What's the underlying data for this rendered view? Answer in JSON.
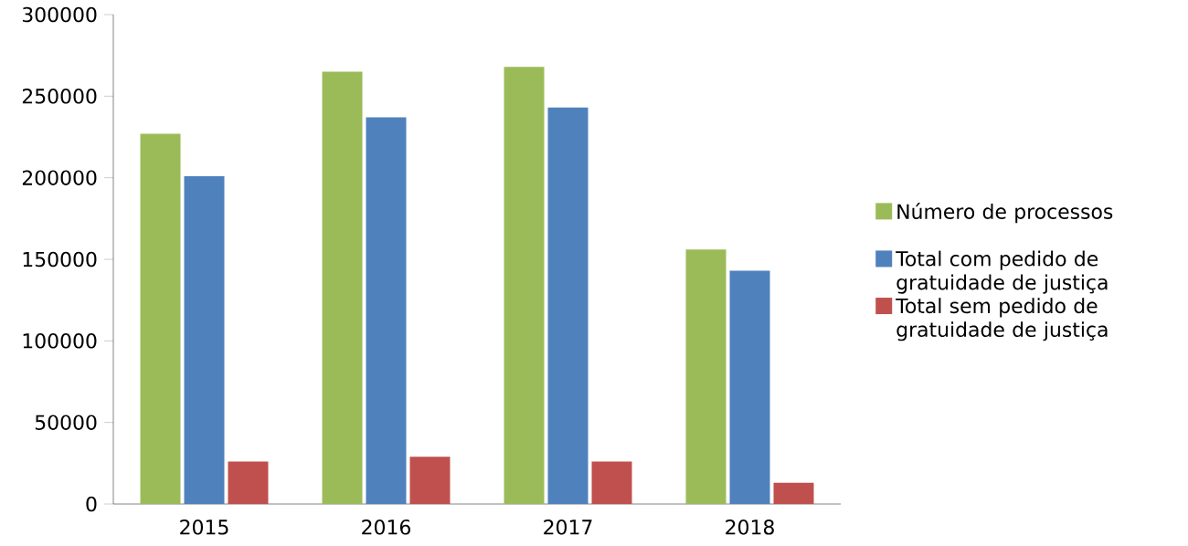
{
  "chart_data": {
    "type": "bar",
    "categories": [
      "2015",
      "2016",
      "2017",
      "2018"
    ],
    "series": [
      {
        "name": "Número de processos",
        "color": "#9bbb59",
        "values": [
          227000,
          265000,
          268000,
          156000
        ]
      },
      {
        "name": "Total com pedido de gratuidade de justiça",
        "color": "#4f81bd",
        "values": [
          201000,
          237000,
          243000,
          143000
        ]
      },
      {
        "name": "Total sem pedido de gratuidade de justiça",
        "color": "#c0504d",
        "values": [
          26000,
          29000,
          26000,
          13000
        ]
      }
    ],
    "ylim": [
      0,
      300000
    ],
    "yticks": [
      0,
      50000,
      100000,
      150000,
      200000,
      250000,
      300000
    ],
    "grid": false,
    "legend": "right"
  }
}
